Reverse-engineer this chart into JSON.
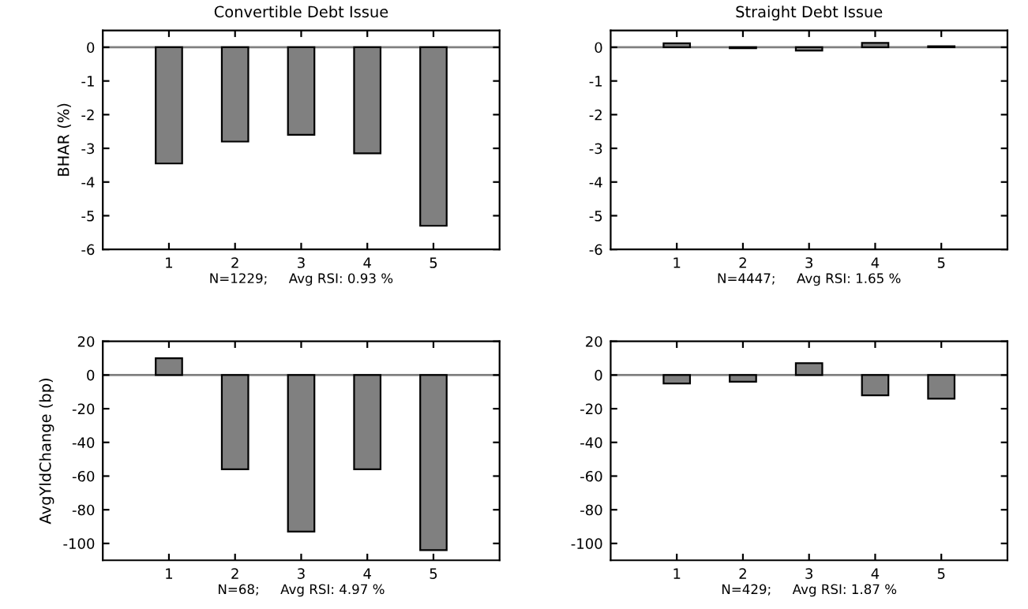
{
  "chart_data": [
    {
      "type": "bar",
      "title": "Convertible Debt Issue",
      "xlabel": "N=1229;     Avg RSI: 0.93 %",
      "ylabel": "BHAR (%)",
      "x": [
        1,
        2,
        3,
        4,
        5
      ],
      "values": [
        -3.45,
        -2.8,
        -2.6,
        -3.15,
        -5.3
      ],
      "color": "#808080",
      "xlim": [
        0,
        6
      ],
      "xticks": [
        1,
        2,
        3,
        4,
        5
      ],
      "ylim": [
        -6,
        0.5
      ],
      "yticks": [
        -6,
        -5,
        -4,
        -3,
        -2,
        -1,
        0
      ],
      "ref_lines": [
        {
          "axis": "y",
          "value": 0
        }
      ],
      "grid": false
    },
    {
      "type": "bar",
      "title": "Straight Debt Issue",
      "xlabel": "N=4447;     Avg RSI: 1.65 %",
      "x": [
        1,
        2,
        3,
        4,
        5
      ],
      "values": [
        0.12,
        -0.03,
        -0.1,
        0.13,
        0.03
      ],
      "color": "#808080",
      "xlim": [
        0,
        6
      ],
      "xticks": [
        1,
        2,
        3,
        4,
        5
      ],
      "ylim": [
        -6,
        0.5
      ],
      "yticks": [
        -6,
        -5,
        -4,
        -3,
        -2,
        -1,
        0
      ],
      "ref_lines": [
        {
          "axis": "y",
          "value": 0
        }
      ],
      "grid": false
    },
    {
      "type": "bar",
      "xlabel": "N=68;     Avg RSI: 4.97 %",
      "ylabel": "AvgYldChange (bp)",
      "x": [
        1,
        2,
        3,
        4,
        5
      ],
      "values": [
        10,
        -56,
        -93,
        -56,
        -104
      ],
      "color": "#808080",
      "xlim": [
        0,
        6
      ],
      "xticks": [
        1,
        2,
        3,
        4,
        5
      ],
      "ylim": [
        -110,
        20
      ],
      "yticks": [
        -100,
        -80,
        -60,
        -40,
        -20,
        0,
        20
      ],
      "ref_lines": [
        {
          "axis": "y",
          "value": 0
        }
      ],
      "grid": false
    },
    {
      "type": "bar",
      "xlabel": "N=429;     Avg RSI: 1.87 %",
      "x": [
        1,
        2,
        3,
        4,
        5
      ],
      "values": [
        -5,
        -4,
        7,
        -12,
        -14
      ],
      "color": "#808080",
      "xlim": [
        0,
        6
      ],
      "xticks": [
        1,
        2,
        3,
        4,
        5
      ],
      "ylim": [
        -110,
        20
      ],
      "yticks": [
        -100,
        -80,
        -60,
        -40,
        -20,
        0,
        20
      ],
      "ref_lines": [
        {
          "axis": "y",
          "value": 0
        }
      ],
      "grid": false
    }
  ]
}
